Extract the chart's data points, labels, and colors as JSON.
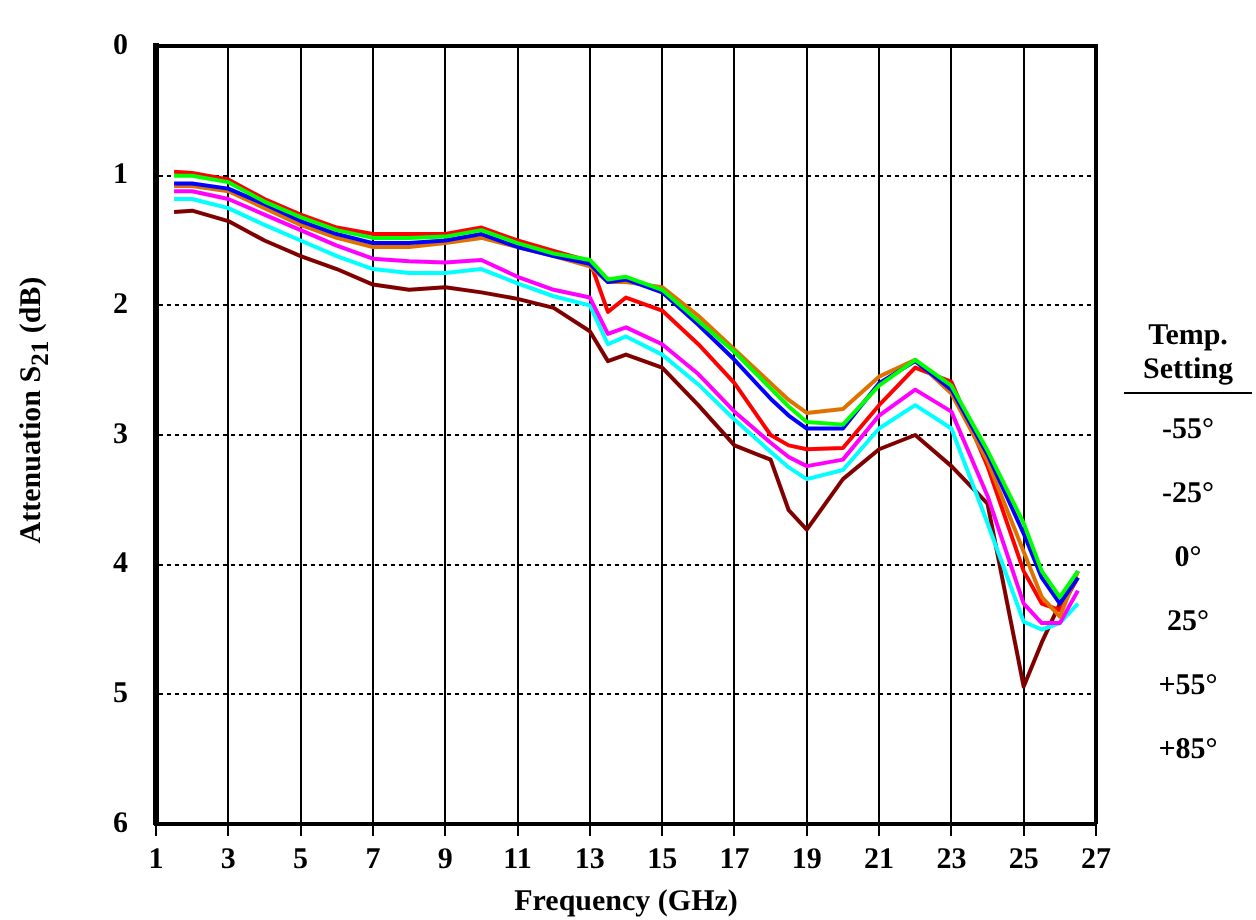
{
  "chart_data": {
    "type": "line",
    "xlabel": "Frequency (GHz)",
    "ylabel": "Attenuation S$_{21}$ (dB)",
    "x": [
      1.5,
      2,
      3,
      4,
      5,
      6,
      7,
      8,
      9,
      10,
      11,
      12,
      13,
      13.5,
      14,
      15,
      16,
      17,
      18,
      18.5,
      19,
      20,
      21,
      22,
      23,
      24,
      25,
      25.5,
      26,
      26.5
    ],
    "series": [
      {
        "color": "#00ff00",
        "values": [
          1.0,
          1.0,
          1.05,
          1.2,
          1.32,
          1.42,
          1.48,
          1.48,
          1.47,
          1.42,
          1.52,
          1.6,
          1.65,
          1.8,
          1.78,
          1.88,
          2.12,
          2.36,
          2.64,
          2.78,
          2.9,
          2.92,
          2.62,
          2.42,
          2.62,
          3.12,
          3.68,
          4.05,
          4.25,
          4.05
        ]
      },
      {
        "color": "#0000ff",
        "values": [
          1.06,
          1.06,
          1.1,
          1.22,
          1.35,
          1.45,
          1.52,
          1.52,
          1.5,
          1.45,
          1.55,
          1.62,
          1.68,
          1.82,
          1.8,
          1.9,
          2.15,
          2.42,
          2.72,
          2.85,
          2.95,
          2.95,
          2.6,
          2.43,
          2.65,
          3.15,
          3.76,
          4.1,
          4.3,
          4.1
        ]
      },
      {
        "color": "#e07000",
        "values": [
          1.08,
          1.08,
          1.12,
          1.25,
          1.38,
          1.48,
          1.55,
          1.55,
          1.52,
          1.48,
          1.55,
          1.62,
          1.7,
          1.82,
          1.82,
          1.86,
          2.08,
          2.34,
          2.6,
          2.73,
          2.83,
          2.8,
          2.55,
          2.42,
          2.68,
          3.2,
          3.9,
          4.25,
          4.4,
          4.05
        ]
      },
      {
        "color": "#ff0000",
        "values": [
          0.97,
          0.98,
          1.03,
          1.18,
          1.3,
          1.4,
          1.45,
          1.45,
          1.45,
          1.4,
          1.5,
          1.58,
          1.66,
          2.05,
          1.94,
          2.04,
          2.3,
          2.6,
          3.0,
          3.08,
          3.11,
          3.1,
          2.77,
          2.48,
          2.59,
          3.24,
          4.05,
          4.3,
          4.35,
          4.1
        ]
      },
      {
        "color": "#ff00ff",
        "values": [
          1.12,
          1.12,
          1.18,
          1.3,
          1.42,
          1.54,
          1.64,
          1.66,
          1.67,
          1.65,
          1.78,
          1.88,
          1.94,
          2.22,
          2.17,
          2.3,
          2.53,
          2.82,
          3.06,
          3.17,
          3.24,
          3.19,
          2.85,
          2.65,
          2.82,
          3.47,
          4.3,
          4.45,
          4.45,
          4.2
        ]
      },
      {
        "color": "#00ffff",
        "values": [
          1.18,
          1.18,
          1.25,
          1.38,
          1.5,
          1.62,
          1.72,
          1.75,
          1.75,
          1.72,
          1.83,
          1.93,
          2.0,
          2.3,
          2.24,
          2.38,
          2.61,
          2.88,
          3.13,
          3.25,
          3.34,
          3.27,
          2.95,
          2.77,
          2.95,
          3.68,
          4.44,
          4.5,
          4.45,
          4.3
        ]
      },
      {
        "color": "#800000",
        "values": [
          1.28,
          1.27,
          1.35,
          1.5,
          1.62,
          1.72,
          1.84,
          1.88,
          1.86,
          1.9,
          1.95,
          2.02,
          2.2,
          2.43,
          2.38,
          2.48,
          2.77,
          3.08,
          3.19,
          3.58,
          3.73,
          3.34,
          3.11,
          3.0,
          3.24,
          3.53,
          4.94,
          4.6,
          4.3,
          4.05
        ]
      }
    ],
    "xlim": [
      1,
      27
    ],
    "xticks": [
      1,
      3,
      5,
      7,
      9,
      11,
      13,
      15,
      17,
      19,
      21,
      23,
      25,
      27
    ],
    "ylim": [
      6,
      0
    ],
    "yticks": [
      0,
      1,
      2,
      3,
      4,
      5,
      6
    ],
    "grid": true,
    "legend": false,
    "marker": "none",
    "line_style": "solid",
    "annotations": [
      "Temp. Setting",
      "-55°",
      "-25°",
      "0°",
      "25°",
      "+55°",
      "+85°"
    ]
  }
}
